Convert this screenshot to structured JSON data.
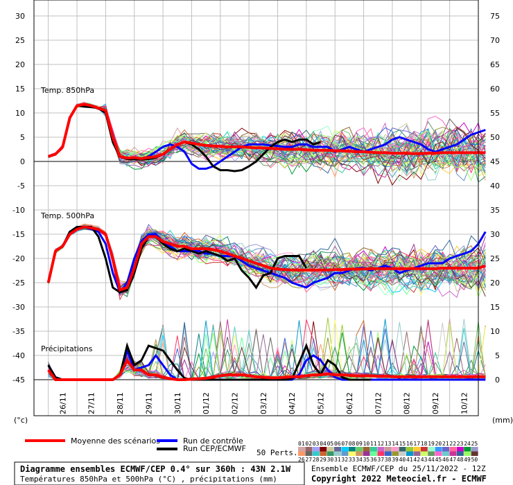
{
  "chart_data": {
    "type": "line",
    "title": "Diagramme ensembles ECMWF/CEP 0.4° sur 360h : 43N 2.1W",
    "left_unit": "(°c)",
    "right_unit": "(mm)",
    "left_ticks": [
      30,
      25,
      20,
      15,
      10,
      5,
      0,
      -5,
      -10,
      -15,
      -20,
      -25,
      -30,
      -35,
      -40,
      -45
    ],
    "right_ticks": [
      75,
      70,
      65,
      60,
      55,
      50,
      45,
      40,
      35,
      30,
      25,
      20,
      15,
      10,
      5,
      0
    ],
    "ylim_left": [
      -45,
      30
    ],
    "ylim_right": [
      0,
      75
    ],
    "x_ticks": [
      "26/11",
      "27/11",
      "28/11",
      "29/11",
      "30/11",
      "01/12",
      "02/12",
      "03/12",
      "04/12",
      "05/12",
      "06/12",
      "07/12",
      "08/12",
      "09/12",
      "10/12"
    ],
    "x_tick_day_offsets": [
      0.5,
      1.5,
      2.5,
      3.5,
      4.5,
      5.5,
      6.5,
      7.5,
      8.5,
      9.5,
      10.5,
      11.5,
      12.5,
      13.5,
      14.5
    ],
    "x_range_days": [
      -0.5,
      15
    ],
    "panel_labels": [
      "Temp. 850hPa",
      "Temp. 500hPa",
      "Précipitations"
    ],
    "temp850": {
      "mean": [
        1,
        1.5,
        3,
        9,
        11.5,
        11.8,
        11.5,
        11,
        10.5,
        5,
        1,
        0.7,
        0.8,
        0.6,
        0.8,
        1,
        1.5,
        2.5,
        3.5,
        4,
        3.8,
        3.5,
        3.3,
        3.2,
        3.1,
        3,
        3,
        3,
        2.9,
        2.8,
        2.8,
        2.7,
        2.6,
        2.5,
        2.5,
        2.5,
        2.4,
        2.3,
        2.3,
        2.3,
        2.2,
        2.2,
        2.1,
        2,
        2,
        1.9,
        1.8,
        1.8,
        1.7,
        1.7,
        1.7,
        1.6,
        1.6,
        1.7,
        1.7,
        1.8,
        1.8,
        1.8,
        1.8,
        1.8,
        1.8,
        1.8
      ],
      "control": [
        1,
        1.5,
        3,
        9,
        11.5,
        11.5,
        11.3,
        11,
        10,
        4.5,
        1,
        0.5,
        0.7,
        0.5,
        1,
        2,
        3,
        3.5,
        3,
        2,
        -0.5,
        -1.5,
        -1.5,
        -1,
        0,
        1,
        2,
        3,
        3.5,
        3.5,
        3.5,
        3.3,
        3.2,
        3,
        3,
        3.5,
        3.5,
        3,
        3,
        3,
        2,
        2.5,
        3,
        2.5,
        2,
        2.5,
        3,
        3.5,
        4.5,
        5,
        4.5,
        4,
        3.5,
        2.5,
        2,
        2.5,
        3,
        3.5,
        4.5,
        5.5,
        6,
        6.5
      ],
      "cep": [
        1,
        1.5,
        3,
        9,
        11.5,
        11.3,
        11.2,
        11,
        10,
        4,
        1,
        0.5,
        0.5,
        0.4,
        0.5,
        0.8,
        1.5,
        2.5,
        3.5,
        4,
        3.5,
        2.5,
        1,
        -1,
        -1.8,
        -1.8,
        -2,
        -1.8,
        -1,
        0,
        1.5,
        3,
        4,
        4.5,
        4,
        4.5,
        4.5,
        3.5,
        4
      ]
    },
    "temp500": {
      "mean": [
        -25,
        -18.5,
        -17.5,
        -15,
        -14,
        -13.5,
        -13.7,
        -14,
        -15,
        -20,
        -26.5,
        -26,
        -22,
        -17,
        -15.5,
        -15.5,
        -16.5,
        -17,
        -17.5,
        -17.5,
        -18,
        -18,
        -18,
        -18.2,
        -18.5,
        -19,
        -19.5,
        -20,
        -20.5,
        -21,
        -21.5,
        -22,
        -22.2,
        -22.3,
        -22.4,
        -22.4,
        -22.4,
        -22.4,
        -22.4,
        -22.4,
        -22.3,
        -22.3,
        -22.2,
        -22.2,
        -22.2,
        -22.1,
        -22.1,
        -22.1,
        -22.1,
        -22.1,
        -22.1,
        -22.1,
        -22.1,
        -22.1,
        -22.1,
        -22,
        -22,
        -22,
        -22,
        -22,
        -22,
        -21.5
      ],
      "control": [
        -25,
        -18.5,
        -17.5,
        -14.5,
        -14,
        -13.5,
        -14,
        -14.5,
        -17,
        -23,
        -27,
        -25,
        -20,
        -16.5,
        -15,
        -15,
        -16.5,
        -17.5,
        -18.5,
        -18.5,
        -18.5,
        -18.5,
        -19,
        -19,
        -19.5,
        -19.5,
        -19.5,
        -20.5,
        -21.5,
        -22,
        -22.5,
        -23,
        -23.5,
        -24,
        -25,
        -25.5,
        -26,
        -25,
        -24.5,
        -24,
        -23,
        -23,
        -22.5,
        -22,
        -22,
        -22.5,
        -22,
        -21.5,
        -22,
        -23,
        -22.5,
        -22,
        -21.5,
        -21,
        -21,
        -21,
        -20,
        -19.5,
        -19,
        -18.5,
        -17,
        -14.5
      ],
      "cep": [
        -25,
        -18.5,
        -17.5,
        -14.5,
        -13.5,
        -13.5,
        -13.5,
        -15.5,
        -20,
        -26,
        -27,
        -26.5,
        -23,
        -18,
        -15.5,
        -15.5,
        -17,
        -18,
        -18.5,
        -18,
        -18.5,
        -19,
        -18.5,
        -19,
        -19.5,
        -20.5,
        -20,
        -22.5,
        -24,
        -26,
        -23.5,
        -23,
        -20,
        -19.5,
        -19.5,
        -19.5,
        -22
      ]
    },
    "precip_mm": {
      "mean": [
        2,
        0,
        0,
        0,
        0,
        0,
        0,
        0,
        0,
        0,
        1,
        4,
        2,
        2,
        1,
        1,
        0.5,
        0.2,
        0,
        0,
        0.1,
        0.2,
        0.3,
        0.5,
        0.8,
        1,
        1,
        1,
        0.8,
        0.6,
        0.5,
        0.4,
        0.4,
        0.5,
        0.6,
        0.6,
        0.8,
        1,
        1,
        1.2,
        1,
        1,
        0.9,
        0.8,
        0.8,
        0.8,
        0.7,
        0.7,
        0.6,
        0.6,
        0.6,
        0.6,
        0.6,
        0.6,
        0.6,
        0.6,
        0.6,
        0.6,
        0.6,
        0.6,
        0.6,
        0.6
      ],
      "control": [
        3,
        0.5,
        0,
        0,
        0,
        0,
        0,
        0,
        0,
        0,
        1,
        6,
        2,
        2.5,
        3,
        5,
        3,
        1,
        0,
        0,
        0,
        0,
        0,
        0,
        0,
        0,
        0,
        0,
        0,
        0,
        0,
        0,
        0,
        0,
        0,
        1,
        4,
        5,
        4,
        2,
        0.5,
        0,
        0,
        0,
        0,
        0,
        0,
        0,
        0,
        0,
        0,
        0,
        0,
        0,
        0,
        0,
        0,
        0,
        0,
        0,
        0,
        0
      ],
      "cep": [
        3,
        0.5,
        0,
        0,
        0,
        0,
        0,
        0,
        0,
        0,
        1,
        7,
        3,
        4,
        7,
        6.5,
        6,
        4,
        2,
        0.3,
        0,
        0,
        0,
        0,
        0,
        0,
        0,
        0,
        0,
        0,
        0,
        0,
        0,
        0,
        0.2,
        3.5,
        7,
        3,
        1,
        4,
        3,
        0.5,
        0,
        0,
        0,
        0
      ]
    }
  },
  "legend": {
    "mean": "Moyenne des scénarios",
    "control": "Run de contrôle",
    "cep": "Run CEP/ECMWF",
    "perts": "50 Perts.",
    "pert_numbers_row1": [
      "01",
      "02",
      "03",
      "04",
      "05",
      "06",
      "07",
      "08",
      "09",
      "10",
      "11",
      "12",
      "13",
      "14",
      "15",
      "16",
      "17",
      "18",
      "19",
      "20",
      "21",
      "22",
      "23",
      "24",
      "25"
    ],
    "pert_numbers_row2": [
      "26",
      "27",
      "28",
      "29",
      "30",
      "31",
      "32",
      "33",
      "34",
      "35",
      "36",
      "37",
      "38",
      "39",
      "40",
      "41",
      "42",
      "43",
      "44",
      "45",
      "46",
      "47",
      "48",
      "49",
      "50"
    ]
  },
  "colors": {
    "mean": "#ff0000",
    "control": "#0000ff",
    "cep": "#000000",
    "grid": "#c0c0c0",
    "zero_line": "#808080",
    "perturbations": [
      "#d4a5a5",
      "#996666",
      "#a0a0ff",
      "#800000",
      "#cccc99",
      "#666699",
      "#00ccff",
      "#008080",
      "#66cc66",
      "#996633",
      "#33cc99",
      "#cc66cc",
      "#cc9999",
      "#ff99cc",
      "#336666",
      "#99cc33",
      "#ffcc33",
      "#cc3333",
      "#99ffcc",
      "#3399ff",
      "#6666cc",
      "#ff6699",
      "#cc00cc",
      "#009933",
      "#9999cc",
      "#ff9966",
      "#666666",
      "#33cccc",
      "#cc6633",
      "#339966",
      "#99cccc",
      "#6699cc",
      "#ffff66",
      "#cc9966",
      "#993399",
      "#66ff99",
      "#ff3366",
      "#3366cc",
      "#999933",
      "#cccccc",
      "#0099cc",
      "#996699",
      "#ccff66",
      "#669966",
      "#ff66cc",
      "#66cccc",
      "#cc3399",
      "#336699",
      "#99ff66",
      "#663333"
    ]
  },
  "footer": {
    "title": "Diagramme ensembles ECMWF/CEP 0.4° sur 360h : 43N 2.1W",
    "subtitle": "Températures 850hPa et 500hPa (°C) , précipitations (mm)",
    "run_info": "Ensemble ECMWF/CEP du 25/11/2022 - 12Z",
    "copyright": "Copyright 2022 Meteociel.fr - ECMWF"
  }
}
